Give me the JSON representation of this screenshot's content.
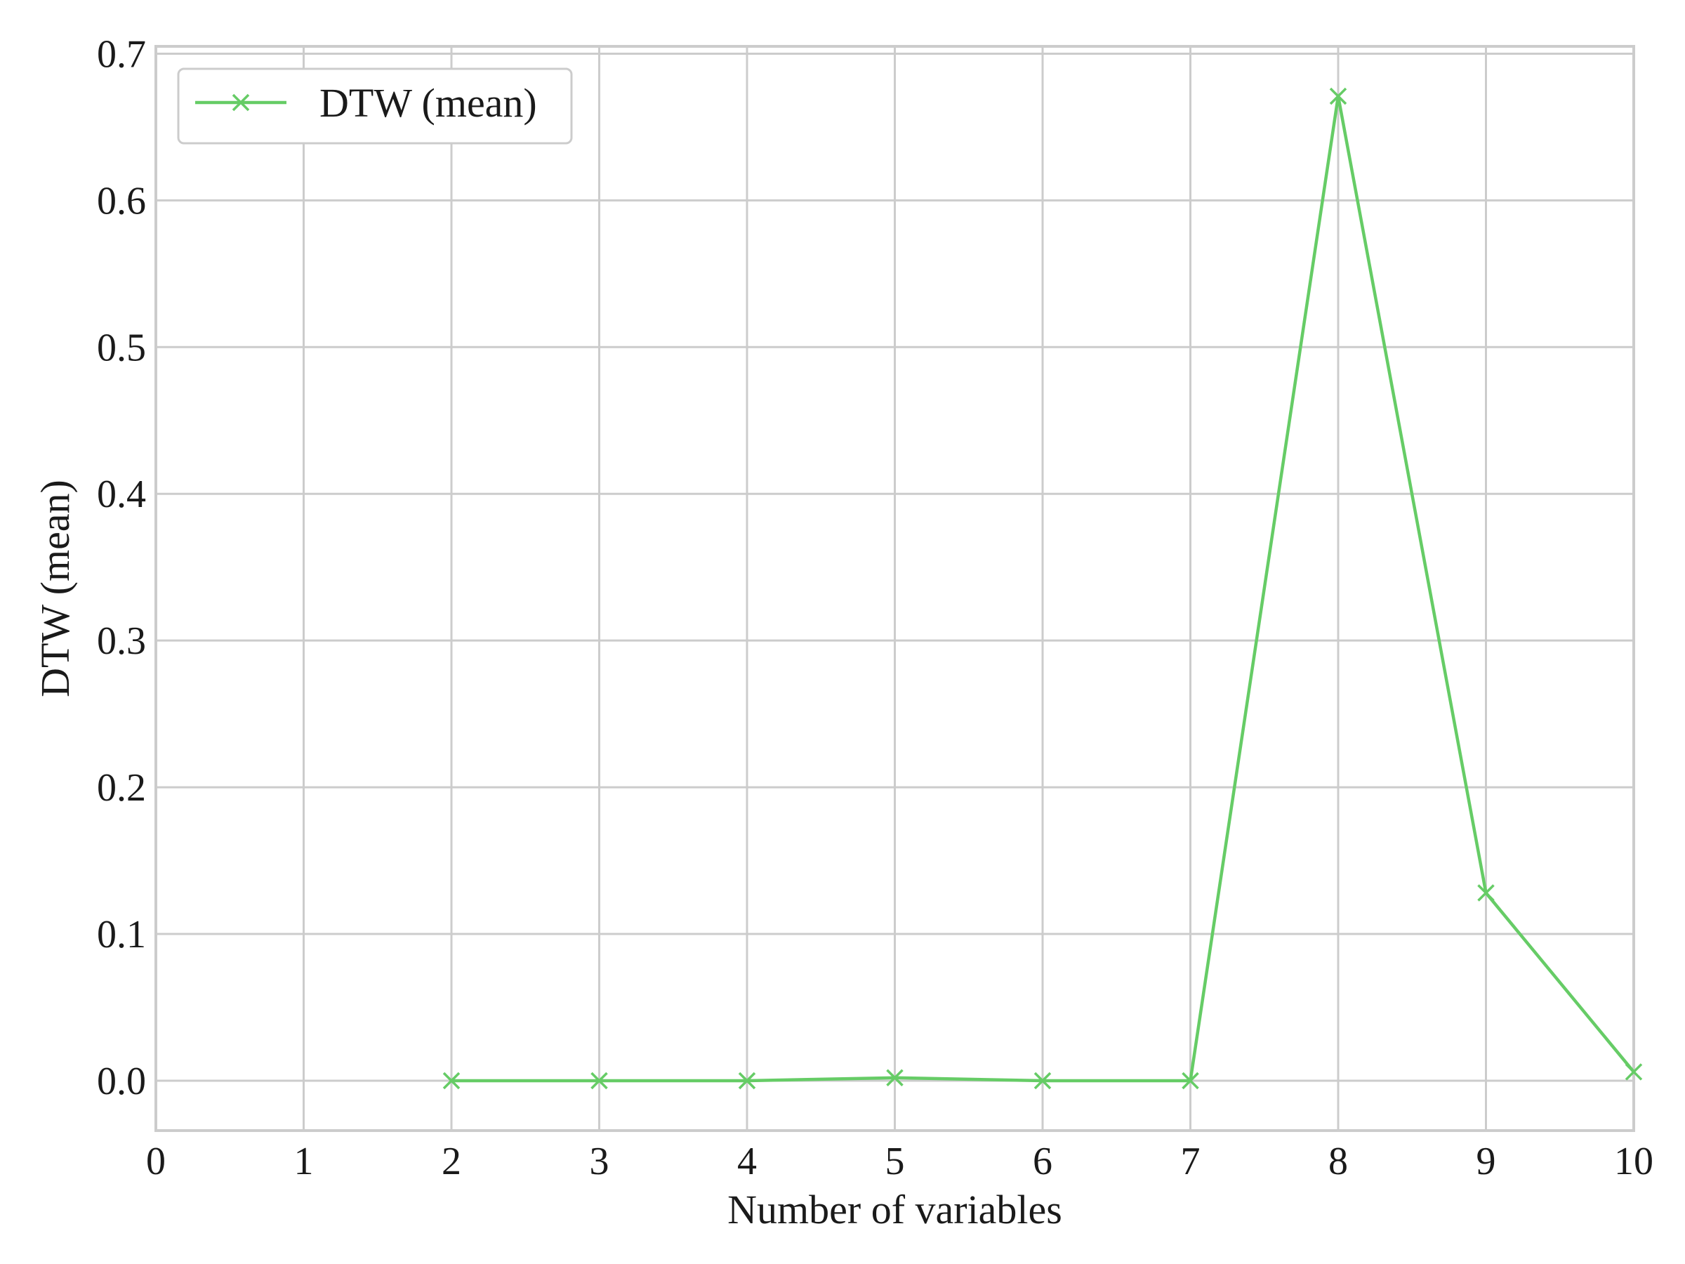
{
  "chart_data": {
    "type": "line",
    "title": "",
    "xlabel": "Number of variables",
    "ylabel": "DTW (mean)",
    "xlim": [
      0,
      10
    ],
    "ylim": [
      -0.034,
      0.705
    ],
    "xticks": [
      0,
      1,
      2,
      3,
      4,
      5,
      6,
      7,
      8,
      9,
      10
    ],
    "yticks": [
      0.0,
      0.1,
      0.2,
      0.3,
      0.4,
      0.5,
      0.6,
      0.7
    ],
    "ytick_labels": [
      "0.0",
      "0.1",
      "0.2",
      "0.3",
      "0.4",
      "0.5",
      "0.6",
      "0.7"
    ],
    "grid": true,
    "legend_position": "top-left",
    "series": [
      {
        "name": "DTW (mean)",
        "color": "#66cc66",
        "marker": "x",
        "x": [
          2,
          3,
          4,
          5,
          6,
          7,
          8,
          9,
          10
        ],
        "y": [
          0.0,
          0.0,
          0.0,
          0.002,
          0.0,
          0.0,
          0.671,
          0.128,
          0.006
        ]
      }
    ]
  }
}
